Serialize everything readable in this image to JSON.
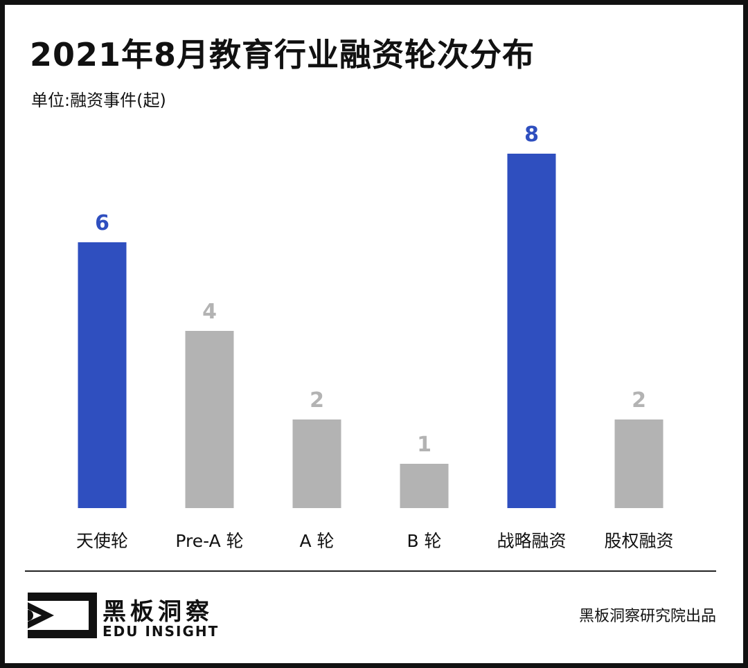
{
  "header": {
    "title": "2021年8月教育行业融资轮次分布",
    "unit": "单位:融资事件(起)"
  },
  "colors": {
    "highlight": "#2F4FBF",
    "normal": "#B3B3B3",
    "text": "#111111"
  },
  "chart_data": {
    "type": "bar",
    "title": "2021年8月教育行业融资轮次分布",
    "ylabel": "单位:融资事件(起)",
    "xlabel": "",
    "categories": [
      "天使轮",
      "Pre-A 轮",
      "A 轮",
      "B 轮",
      "战略融资",
      "股权融资"
    ],
    "values": [
      6,
      4,
      2,
      1,
      8,
      2
    ],
    "highlight": [
      true,
      false,
      false,
      false,
      true,
      false
    ],
    "ylim": [
      0,
      8
    ],
    "grid": false,
    "legend": "none",
    "data_labels": true
  },
  "footer": {
    "brand_cn": "黑板洞察",
    "brand_en": "EDU INSIGHT",
    "credit": "黑板洞察研究院出品"
  }
}
